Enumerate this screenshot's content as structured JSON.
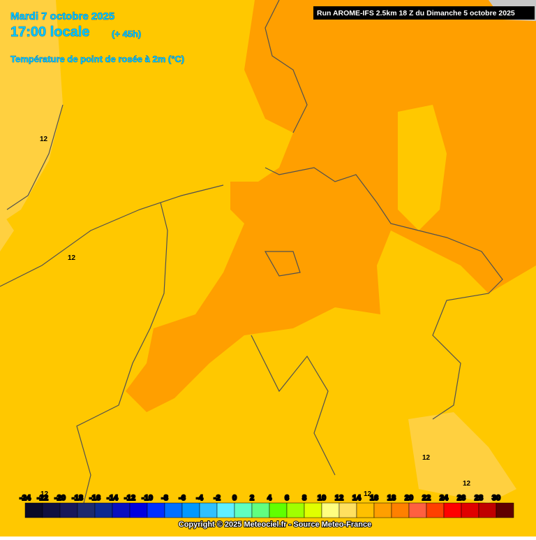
{
  "header": {
    "date": "Mardi 7 octobre 2025",
    "time": "17:00 locale",
    "lead": "(+ 45h)",
    "parameter": "Température de point de rosée à 2m (°C)",
    "run": "Run AROME-IFS 2.5km 18 Z du Dimanche 5 octobre 2025"
  },
  "contour_labels": [
    "12",
    "12",
    "12",
    "12",
    "12",
    "12"
  ],
  "colorbar": {
    "ticks": [
      "-24",
      "-22",
      "-20",
      "-18",
      "-16",
      "-14",
      "-12",
      "-10",
      "-8",
      "-6",
      "-4",
      "-2",
      "0",
      "2",
      "4",
      "6",
      "8",
      "10",
      "12",
      "14",
      "16",
      "18",
      "20",
      "22",
      "24",
      "26",
      "28",
      "30"
    ],
    "colors": [
      "#0a0a28",
      "#101040",
      "#18185a",
      "#1c2a6e",
      "#0c2a90",
      "#0a10c0",
      "#0000e0",
      "#0030ff",
      "#0070ff",
      "#0098ff",
      "#30c0ff",
      "#60f0ff",
      "#60ffc0",
      "#60ff80",
      "#60ff00",
      "#a0ff00",
      "#e0ff00",
      "#ffff80",
      "#ffe060",
      "#ffc000",
      "#ff9f00",
      "#ff8000",
      "#ff6040",
      "#ff4000",
      "#ff0000",
      "#e00000",
      "#c00000",
      "#600000"
    ]
  },
  "footer": {
    "copyright": "Copyright © 2025 Meteociel.fr - Source Meteo-France"
  }
}
